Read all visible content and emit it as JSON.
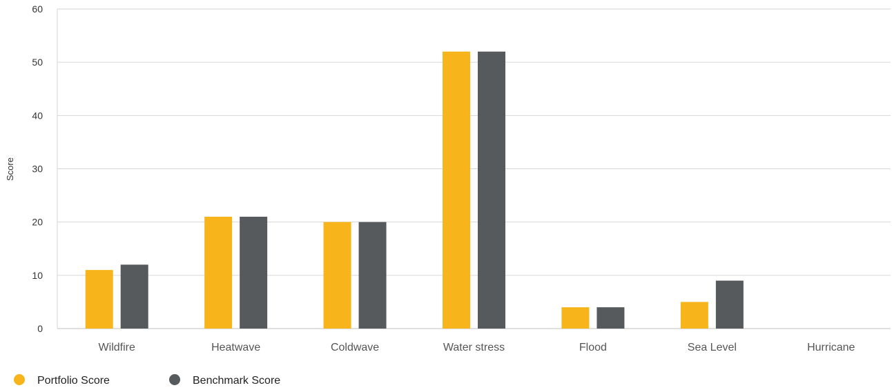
{
  "chart_data": {
    "type": "bar",
    "title": "",
    "xlabel": "",
    "ylabel": "Score",
    "ylim": [
      0,
      60
    ],
    "yticks": [
      0,
      10,
      20,
      30,
      40,
      50,
      60
    ],
    "grid": true,
    "legend_position": "bottom-left",
    "categories": [
      "Wildfire",
      "Heatwave",
      "Coldwave",
      "Water stress",
      "Flood",
      "Sea Level",
      "Hurricane"
    ],
    "series": [
      {
        "name": "Portfolio Score",
        "color": "#F7B51B",
        "values": [
          11,
          21,
          20,
          52,
          4,
          5,
          0
        ]
      },
      {
        "name": "Benchmark Score",
        "color": "#575A5C",
        "values": [
          12,
          21,
          20,
          52,
          4,
          9,
          0
        ]
      }
    ]
  }
}
